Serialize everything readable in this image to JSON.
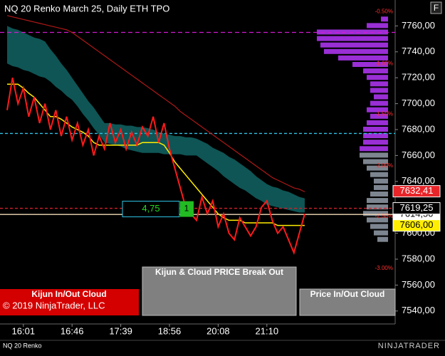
{
  "chart_data": {
    "type": "line",
    "title": "NQ 20 Renko March 25, Daily ETH TPO",
    "instrument": "NQ 20 Renko",
    "copyright": "© 2019 NinjaTrader, LLC",
    "logo": "NINJATRADER",
    "menu_button": "F",
    "categories": [
      null,
      null,
      null,
      "16:01",
      null,
      null,
      null,
      null,
      null,
      null,
      null,
      null,
      "16:46",
      null,
      null,
      null,
      null,
      null,
      null,
      null,
      null,
      "17:39",
      null,
      null,
      null,
      null,
      null,
      null,
      null,
      null,
      "18:56",
      null,
      null,
      null,
      null,
      null,
      null,
      null,
      null,
      "20:08",
      null,
      null,
      null,
      null,
      null,
      null,
      null,
      null,
      "21:10",
      null,
      null,
      null,
      null,
      null,
      null,
      null
    ],
    "ylim": [
      7530,
      7780
    ],
    "yticks": [
      {
        "value": 7760,
        "label": "7760,00"
      },
      {
        "value": 7740,
        "label": "7740,00"
      },
      {
        "value": 7720,
        "label": "7720,00"
      },
      {
        "value": 7700,
        "label": "7700,00"
      },
      {
        "value": 7680,
        "label": "7680,00"
      },
      {
        "value": 7660,
        "label": "7660,00"
      },
      {
        "value": 7640,
        "label": "7640,00"
      },
      {
        "value": 7620,
        "label": "7620,00"
      },
      {
        "value": 7600,
        "label": "7600,00"
      },
      {
        "value": 7580,
        "label": "7580,00"
      },
      {
        "value": 7560,
        "label": "7560,00"
      },
      {
        "value": 7540,
        "label": "7540,00"
      }
    ],
    "cloud": {
      "color": "#0f5555",
      "upper": [
        7760,
        7758,
        7757,
        7755,
        7753,
        7751,
        7750,
        7748,
        7742,
        7737,
        7731,
        7726,
        7720,
        7714,
        7708,
        7702,
        7697,
        7691,
        7685,
        7685,
        7684,
        7684,
        7683,
        7683,
        7682,
        7682,
        7681,
        7680,
        7678,
        7677,
        7676,
        7675,
        7675,
        7674,
        7674,
        7673,
        7671,
        7669,
        7666,
        7664,
        7662,
        7659,
        7657,
        7654,
        7651,
        7648,
        7644,
        7641,
        7638,
        7636,
        7635,
        7633,
        7632,
        7630,
        7628,
        7627
      ],
      "lower": [
        7731,
        7729,
        7728,
        7726,
        7725,
        7723,
        7721,
        7720,
        7717,
        7713,
        7710,
        7706,
        7703,
        7698,
        7692,
        7687,
        7681,
        7676,
        7670,
        7669,
        7668,
        7667,
        7665,
        7664,
        7663,
        7662,
        7662,
        7662,
        7662,
        7661,
        7661,
        7661,
        7661,
        7660,
        7660,
        7660,
        7657,
        7654,
        7651,
        7648,
        7644,
        7641,
        7638,
        7635,
        7633,
        7630,
        7627,
        7625,
        7622,
        7621,
        7620,
        7619,
        7618,
        7617,
        7616,
        7616
      ]
    },
    "series": [
      {
        "color": "#b01818",
        "width": 1.2,
        "values": [
          7768,
          7767,
          7766,
          7765,
          7764,
          7763,
          7762,
          7761,
          7760,
          7759,
          7758,
          7757,
          7755,
          7752,
          7749,
          7746,
          7743,
          7740,
          7737,
          7734,
          7731,
          7728,
          7725,
          7722,
          7719,
          7716,
          7713,
          7710,
          7707,
          7704,
          7701,
          7698,
          7694,
          7691,
          7688,
          7685,
          7682,
          7679,
          7676,
          7673,
          7670,
          7667,
          7664,
          7661,
          7658,
          7655,
          7652,
          7649,
          7646,
          7643,
          7641,
          7639,
          7637,
          7635,
          7634,
          7632
        ]
      },
      {
        "color": "#ffee00",
        "width": 1.5,
        "values": [
          7715,
          7715,
          7715,
          7712,
          7708,
          7705,
          7700,
          7695,
          7690,
          7690,
          7688,
          7685,
          7682,
          7680,
          7678,
          7675,
          7670,
          7668,
          7668,
          7668,
          7668,
          7668,
          7668,
          7668,
          7668,
          7670,
          7670,
          7670,
          7670,
          7668,
          7662,
          7655,
          7650,
          7645,
          7640,
          7635,
          7630,
          7625,
          7620,
          7615,
          7612,
          7610,
          7610,
          7610,
          7608,
          7608,
          7608,
          7608,
          7608,
          7608,
          7606,
          7606,
          7606,
          7606,
          7606,
          7606
        ]
      },
      {
        "color": "#ff1a1a",
        "width": 2,
        "values": [
          7695,
          7720,
          7700,
          7712,
          7690,
          7705,
          7685,
          7700,
          7680,
          7695,
          7675,
          7690,
          7672,
          7685,
          7668,
          7680,
          7660,
          7675,
          7665,
          7685,
          7670,
          7680,
          7665,
          7678,
          7668,
          7682,
          7675,
          7690,
          7670,
          7685,
          7665,
          7650,
          7635,
          7620,
          7615,
          7610,
          7628,
          7615,
          7625,
          7605,
          7615,
          7600,
          7595,
          7612,
          7605,
          7598,
          7605,
          7620,
          7625,
          7610,
          7600,
          7605,
          7595,
          7585,
          7600,
          7615
        ]
      }
    ],
    "levels": [
      {
        "value": 7755,
        "color": "#d11ad1",
        "dash": "6,4"
      },
      {
        "value": 7677,
        "color": "#2ec4e6",
        "dash": "4,3"
      },
      {
        "value": 7619.25,
        "color": "#d0202a",
        "dash": "4,3"
      },
      {
        "value": 7614.5,
        "color": "#f3dcb8",
        "dash": "none"
      }
    ],
    "tpo": {
      "color_above": "#9a2fd6",
      "color_below": "#7d8590",
      "split": 7662,
      "prices": [
        7765,
        7760,
        7755,
        7750,
        7745,
        7740,
        7735,
        7730,
        7725,
        7720,
        7715,
        7710,
        7705,
        7700,
        7695,
        7690,
        7685,
        7680,
        7675,
        7670,
        7665,
        7660,
        7655,
        7650,
        7645,
        7640,
        7635,
        7630,
        7625,
        7620,
        7615,
        7610,
        7605,
        7600,
        7595
      ],
      "counts": [
        2,
        6,
        20,
        20,
        19,
        18,
        14,
        10,
        7,
        6,
        5,
        5,
        4,
        5,
        6,
        5,
        6,
        7,
        7,
        7,
        8,
        8,
        7,
        6,
        5,
        4,
        4,
        5,
        6,
        6,
        7,
        6,
        5,
        4,
        3
      ]
    },
    "pct_levels": [
      {
        "value": 7771,
        "label": "-0.50%"
      },
      {
        "value": 7731,
        "label": "-1.00%"
      },
      {
        "value": 7692,
        "label": "-1.50%"
      },
      {
        "value": 7652,
        "label": "-2.00%"
      },
      {
        "value": 7613,
        "label": "-2.50%"
      },
      {
        "value": 7573,
        "label": "-3.00%"
      }
    ],
    "price_markers": [
      {
        "value": 7632.41,
        "label": "7632,41",
        "bg": "#e8262a",
        "fg": "#ffffff"
      },
      {
        "value": 7614.5,
        "label": "7614,50",
        "bg": "#ffffff",
        "fg": "#000000"
      },
      {
        "value": 7619.25,
        "label": "7619,25",
        "bg": "#000000",
        "fg": "#ffffff"
      },
      {
        "value": 7606,
        "label": "7606,00",
        "bg": "#ffee00",
        "fg": "#000000"
      }
    ],
    "range_box": {
      "value": 4.75,
      "label": "4,75",
      "count": 1
    },
    "buttons": [
      "Kijun & Cloud PRICE Break Out",
      "Kijun In/Out Cloud",
      "Price In/Out Cloud"
    ]
  }
}
